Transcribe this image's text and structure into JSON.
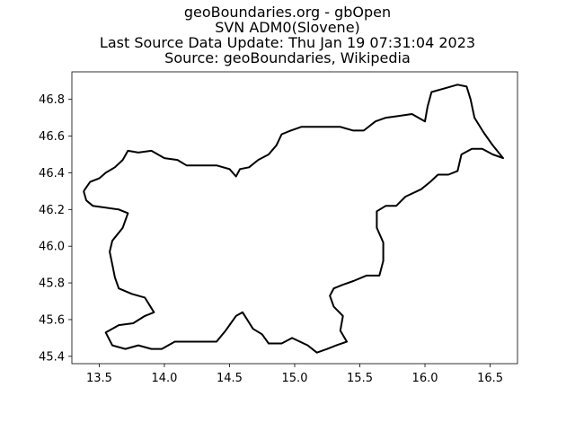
{
  "title_lines": [
    "geoBoundaries.org - gbOpen",
    "SVN ADM0(Slovene)",
    "Last Source Data Update: Thu Jan 19 07:31:04 2023",
    "Source: geoBoundaries, Wikipedia"
  ],
  "chart_data": {
    "type": "line",
    "title": "geoBoundaries.org - gbOpen\nSVN ADM0(Slovene)\nLast Source Data Update: Thu Jan 19 07:31:04 2023\nSource: geoBoundaries, Wikipedia",
    "xlabel": "",
    "ylabel": "",
    "xlim": [
      13.29,
      16.71
    ],
    "ylim": [
      45.36,
      46.95
    ],
    "x_ticks": [
      13.5,
      14.0,
      14.5,
      15.0,
      15.5,
      16.0,
      16.5
    ],
    "x_tick_labels": [
      "13.5",
      "14.0",
      "14.5",
      "15.0",
      "15.5",
      "16.0",
      "16.5"
    ],
    "y_ticks": [
      45.4,
      45.6,
      45.8,
      46.0,
      46.2,
      46.4,
      46.6,
      46.8
    ],
    "y_tick_labels": [
      "45.4",
      "45.6",
      "45.8",
      "46.0",
      "46.2",
      "46.4",
      "46.6",
      "46.8"
    ],
    "grid": false,
    "line_color": "#000000",
    "series": [
      {
        "name": "",
        "points": [
          [
            13.38,
            46.3
          ],
          [
            13.43,
            46.35
          ],
          [
            13.5,
            46.37
          ],
          [
            13.55,
            46.4
          ],
          [
            13.62,
            46.43
          ],
          [
            13.68,
            46.47
          ],
          [
            13.72,
            46.52
          ],
          [
            13.8,
            46.51
          ],
          [
            13.9,
            46.52
          ],
          [
            14.0,
            46.48
          ],
          [
            14.1,
            46.47
          ],
          [
            14.17,
            46.44
          ],
          [
            14.3,
            46.44
          ],
          [
            14.4,
            46.44
          ],
          [
            14.5,
            46.42
          ],
          [
            14.55,
            46.38
          ],
          [
            14.58,
            46.42
          ],
          [
            14.65,
            46.43
          ],
          [
            14.72,
            46.47
          ],
          [
            14.8,
            46.5
          ],
          [
            14.86,
            46.55
          ],
          [
            14.9,
            46.61
          ],
          [
            14.97,
            46.63
          ],
          [
            15.05,
            46.65
          ],
          [
            15.15,
            46.65
          ],
          [
            15.25,
            46.65
          ],
          [
            15.35,
            46.65
          ],
          [
            15.45,
            46.63
          ],
          [
            15.53,
            46.63
          ],
          [
            15.62,
            46.68
          ],
          [
            15.7,
            46.7
          ],
          [
            15.8,
            46.71
          ],
          [
            15.9,
            46.72
          ],
          [
            16.0,
            46.68
          ],
          [
            16.02,
            46.76
          ],
          [
            16.05,
            46.84
          ],
          [
            16.15,
            46.86
          ],
          [
            16.25,
            46.88
          ],
          [
            16.32,
            46.87
          ],
          [
            16.35,
            46.8
          ],
          [
            16.38,
            46.7
          ],
          [
            16.45,
            46.62
          ],
          [
            16.52,
            46.55
          ],
          [
            16.6,
            46.48
          ],
          [
            16.52,
            46.5
          ],
          [
            16.44,
            46.53
          ],
          [
            16.36,
            46.53
          ],
          [
            16.28,
            46.5
          ],
          [
            16.25,
            46.41
          ],
          [
            16.18,
            46.39
          ],
          [
            16.1,
            46.39
          ],
          [
            16.04,
            46.35
          ],
          [
            15.97,
            46.31
          ],
          [
            15.85,
            46.27
          ],
          [
            15.78,
            46.22
          ],
          [
            15.7,
            46.22
          ],
          [
            15.63,
            46.19
          ],
          [
            15.63,
            46.1
          ],
          [
            15.68,
            46.02
          ],
          [
            15.68,
            45.92
          ],
          [
            15.65,
            45.84
          ],
          [
            15.55,
            45.84
          ],
          [
            15.45,
            45.81
          ],
          [
            15.37,
            45.79
          ],
          [
            15.3,
            45.77
          ],
          [
            15.27,
            45.73
          ],
          [
            15.3,
            45.67
          ],
          [
            15.37,
            45.62
          ],
          [
            15.35,
            45.54
          ],
          [
            15.4,
            45.48
          ],
          [
            15.32,
            45.46
          ],
          [
            15.25,
            45.44
          ],
          [
            15.17,
            45.42
          ],
          [
            15.1,
            45.46
          ],
          [
            14.98,
            45.5
          ],
          [
            14.9,
            45.47
          ],
          [
            14.8,
            45.47
          ],
          [
            14.75,
            45.52
          ],
          [
            14.68,
            45.55
          ],
          [
            14.6,
            45.64
          ],
          [
            14.55,
            45.62
          ],
          [
            14.47,
            45.54
          ],
          [
            14.4,
            45.48
          ],
          [
            14.3,
            45.48
          ],
          [
            14.18,
            45.48
          ],
          [
            14.08,
            45.48
          ],
          [
            13.98,
            45.44
          ],
          [
            13.9,
            45.44
          ],
          [
            13.8,
            45.46
          ],
          [
            13.7,
            45.44
          ],
          [
            13.6,
            45.46
          ],
          [
            13.55,
            45.53
          ],
          [
            13.65,
            45.57
          ],
          [
            13.76,
            45.58
          ],
          [
            13.85,
            45.62
          ],
          [
            13.92,
            45.64
          ],
          [
            13.85,
            45.72
          ],
          [
            13.75,
            45.74
          ],
          [
            13.65,
            45.77
          ],
          [
            13.62,
            45.83
          ],
          [
            13.6,
            45.9
          ],
          [
            13.58,
            45.97
          ],
          [
            13.6,
            46.03
          ],
          [
            13.68,
            46.1
          ],
          [
            13.72,
            46.18
          ],
          [
            13.65,
            46.2
          ],
          [
            13.55,
            46.21
          ],
          [
            13.45,
            46.22
          ],
          [
            13.4,
            46.25
          ],
          [
            13.38,
            46.3
          ]
        ]
      }
    ]
  }
}
